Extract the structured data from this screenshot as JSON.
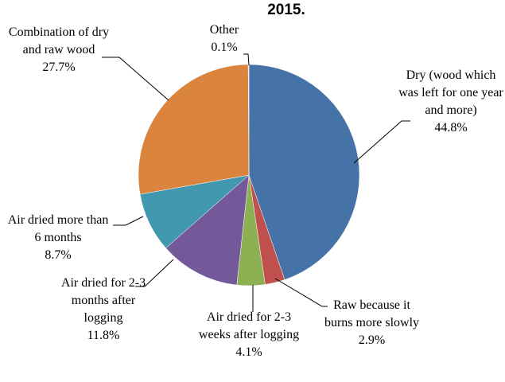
{
  "chart_data": {
    "type": "pie",
    "title": "2015.",
    "categories": [
      "Dry (wood which was left for one year and more)",
      "Raw because it burns more slowly",
      "Air dried for 2-3 weeks after logging",
      "Air dried for 2-3 months after logging",
      "Air dried more than 6 months",
      "Combination of dry and raw wood",
      "Other"
    ],
    "values": [
      44.8,
      2.9,
      4.1,
      11.8,
      8.7,
      27.7,
      0.1
    ],
    "value_labels": [
      "44.8%",
      "2.9%",
      "4.1%",
      "11.8%",
      "8.7%",
      "27.7%",
      "0.1%"
    ],
    "colors": [
      "#4572a7",
      "#c0504d",
      "#8cb052",
      "#74599a",
      "#4198af",
      "#db843d",
      "#bfbfbf"
    ]
  }
}
